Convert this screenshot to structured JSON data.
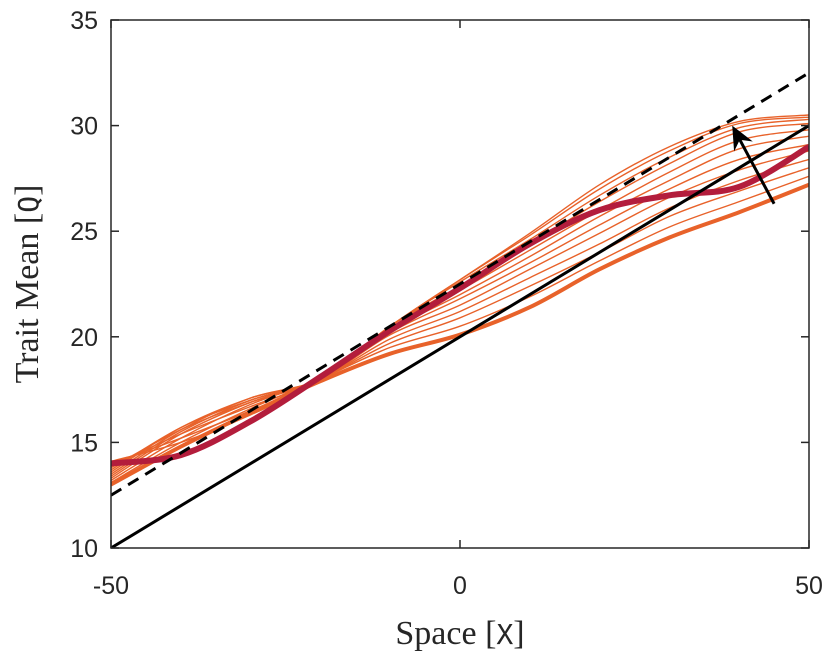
{
  "chart_data": {
    "type": "line",
    "xlabel_text": "Space [",
    "xlabel_var": "X",
    "xlabel_close": "]",
    "ylabel_text": "Trait Mean [",
    "ylabel_var": "Q",
    "ylabel_close": "]",
    "xlim": [
      -50,
      50
    ],
    "ylim": [
      10,
      35
    ],
    "xticks": [
      -50,
      0,
      50
    ],
    "yticks": [
      10,
      15,
      20,
      25,
      30,
      35
    ],
    "grid": false,
    "colors": {
      "evolving": "#e8622a",
      "final": "#b31d3c",
      "reference": "#000000"
    },
    "x": [
      -50,
      -40,
      -30,
      -20,
      -10,
      0,
      10,
      20,
      30,
      40,
      50
    ],
    "reference_lines": [
      {
        "style": "solid",
        "x": [
          -50,
          50
        ],
        "y": [
          10,
          30
        ]
      },
      {
        "style": "dashed",
        "x": [
          -50,
          50
        ],
        "y": [
          12.5,
          32.5
        ]
      }
    ],
    "series_initial": [
      13,
      14.8,
      16.4,
      17.9,
      19.2,
      20.1,
      21.4,
      23.2,
      24.7,
      25.9,
      27.2
    ],
    "series_final": [
      14,
      14.4,
      16.0,
      18.1,
      20.3,
      22.3,
      24.4,
      26.0,
      26.7,
      27.1,
      29.0
    ],
    "evolving_series": [
      [
        13.1,
        15.0,
        16.6,
        18.0,
        19.5,
        20.5,
        21.9,
        23.6,
        25.2,
        26.4,
        27.6
      ],
      [
        13.2,
        15.2,
        16.8,
        18.0,
        19.7,
        20.9,
        22.4,
        24.0,
        25.7,
        26.9,
        28.0
      ],
      [
        13.3,
        15.4,
        16.9,
        18.0,
        19.9,
        21.2,
        22.8,
        24.4,
        26.1,
        27.4,
        28.4
      ],
      [
        13.4,
        15.5,
        17.0,
        18.0,
        20.1,
        21.5,
        23.2,
        24.9,
        26.6,
        27.9,
        28.8
      ],
      [
        13.5,
        15.6,
        17.1,
        18.0,
        20.2,
        21.8,
        23.5,
        25.3,
        27.0,
        28.4,
        29.1
      ],
      [
        13.6,
        15.7,
        17.1,
        18.0,
        20.3,
        22.0,
        23.8,
        25.7,
        27.4,
        28.9,
        29.5
      ],
      [
        13.7,
        15.7,
        17.0,
        18.0,
        20.4,
        22.2,
        24.1,
        26.0,
        27.8,
        29.3,
        29.8
      ],
      [
        13.8,
        15.6,
        16.9,
        18.0,
        20.5,
        22.4,
        24.4,
        26.4,
        28.2,
        29.7,
        30.1
      ],
      [
        13.9,
        15.4,
        16.7,
        18.0,
        20.5,
        22.6,
        24.6,
        26.7,
        28.5,
        29.9,
        30.3
      ],
      [
        14.0,
        15.2,
        16.5,
        18.0,
        20.5,
        22.7,
        24.8,
        27.0,
        28.8,
        30.1,
        30.4
      ],
      [
        14.1,
        15.0,
        16.3,
        18.0,
        20.5,
        22.7,
        24.9,
        27.2,
        29.0,
        30.2,
        30.5
      ]
    ],
    "arrow": {
      "from": [
        45,
        26.3
      ],
      "to": [
        39,
        30.0
      ]
    }
  }
}
